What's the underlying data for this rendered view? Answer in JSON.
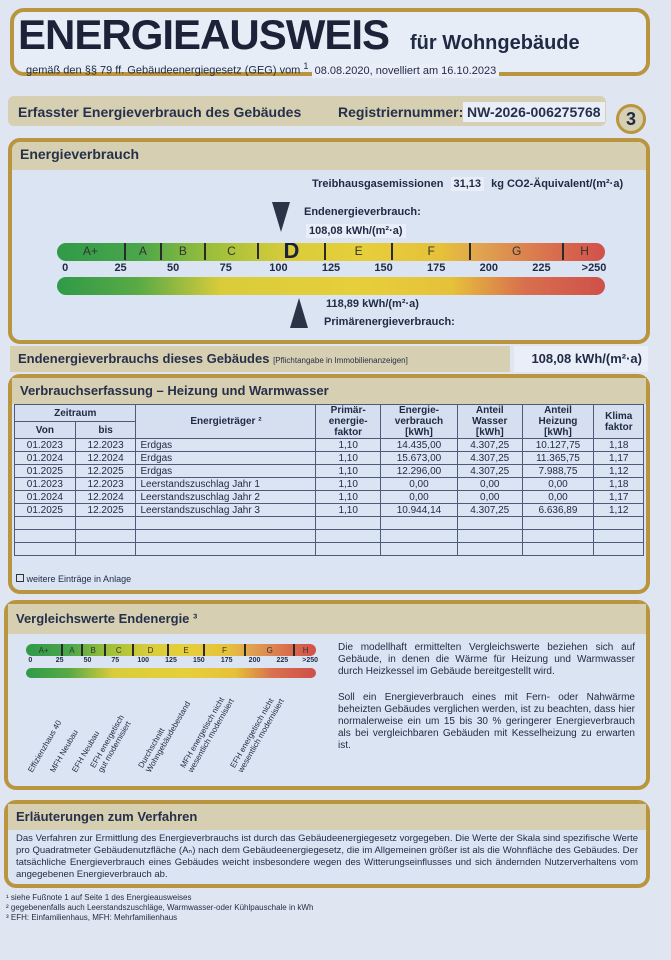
{
  "header": {
    "title": "ENERGIEAUSWEIS",
    "subtitle": "für Wohngebäude",
    "legal_ref": "gemäß den §§ 79 ff. Gebäudeenergiegesetz (GEG) vom",
    "legal_footnote": "1",
    "legal_dates": "08.08.2020, novelliert am 16.10.2023"
  },
  "registration": {
    "label": "Erfasster Energieverbrauch des Gebäudes",
    "number_label": "Registriernummer:",
    "number": "NW-2026-006275768",
    "page": "3"
  },
  "energy": {
    "heading": "Energieverbrauch",
    "ghg_label": "Treibhausgasemissionen",
    "ghg_value": "31,13",
    "ghg_unit": "kg CO2-Äquivalent/(m²·a)",
    "end_label": "Endenergieverbrauch:",
    "end_value": "108,08 kWh/(m²·a)",
    "primary_value": "118,89 kWh/(m²·a)",
    "primary_label": "Primärenergieverbrauch:",
    "current_class": "D",
    "end_numeric": 108.08,
    "primary_numeric": 118.89,
    "classes": [
      "A+",
      "A",
      "B",
      "C",
      "D",
      "E",
      "F",
      "G",
      "H"
    ],
    "ticks": [
      "0",
      "25",
      "50",
      "75",
      "100",
      "125",
      "150",
      "175",
      "200",
      "225",
      ">250"
    ]
  },
  "building_value": {
    "label": "Endenergieverbrauchs dieses Gebäudes",
    "note": "[Pflichtangabe in Immobilienanzeigen]",
    "value": "108,08 kWh/(m²·a)"
  },
  "consumption": {
    "heading": "Verbrauchserfassung – Heizung und Warmwasser",
    "headers": {
      "period": "Zeitraum",
      "from": "Von",
      "to": "bis",
      "carrier": "Energieträger ²",
      "pef": "Primär-\nenergie-\nfaktor",
      "consumption": "Energie-\nverbrauch\n[kWh]",
      "water": "Anteil\nWasser\n[kWh]",
      "heating": "Anteil\nHeizung\n[kWh]",
      "climate": "Klima\nfaktor"
    },
    "rows": [
      [
        "01.2023",
        "12.2023",
        "Erdgas",
        "1,10",
        "14.435,00",
        "4.307,25",
        "10.127,75",
        "1,18"
      ],
      [
        "01.2024",
        "12.2024",
        "Erdgas",
        "1,10",
        "15.673,00",
        "4.307,25",
        "11.365,75",
        "1,17"
      ],
      [
        "01.2025",
        "12.2025",
        "Erdgas",
        "1,10",
        "12.296,00",
        "4.307,25",
        "7.988,75",
        "1,12"
      ],
      [
        "01.2023",
        "12.2023",
        "Leerstandszuschlag Jahr 1",
        "1,10",
        "0,00",
        "0,00",
        "0,00",
        "1,18"
      ],
      [
        "01.2024",
        "12.2024",
        "Leerstandszuschlag Jahr 2",
        "1,10",
        "0,00",
        "0,00",
        "0,00",
        "1,17"
      ],
      [
        "01.2025",
        "12.2025",
        "Leerstandszuschlag Jahr 3",
        "1,10",
        "10.944,14",
        "4.307,25",
        "6.636,89",
        "1,12"
      ],
      [
        "",
        "",
        "",
        "",
        "",
        "",
        "",
        ""
      ],
      [
        "",
        "",
        "",
        "",
        "",
        "",
        "",
        ""
      ],
      [
        "",
        "",
        "",
        "",
        "",
        "",
        "",
        ""
      ]
    ],
    "more_entries": "weitere Einträge in Anlage",
    "more_entries_checked": false
  },
  "comparison": {
    "heading": "Vergleichswerte Endenergie ³",
    "classes": [
      "A+",
      "A",
      "B",
      "C",
      "D",
      "E",
      "F",
      "G",
      "H"
    ],
    "ticks": [
      "0",
      "25",
      "50",
      "75",
      "100",
      "125",
      "150",
      "175",
      "200",
      "225",
      ">250"
    ],
    "labels": [
      "Effizienzhaus 40",
      "MFH Neubau",
      "EFH Neubau",
      "EFH energetisch\ngut modernisiert",
      "Durchschnitt\nWohngebäudebestand",
      "MFH energetisch nicht\nwesentlich modernisiert",
      "EFH energetisch nicht\nwesentlich modernisiert"
    ],
    "text1": "Die modellhaft ermittelten Vergleichswerte beziehen sich auf Gebäude, in denen die Wärme für Heizung und Warmwasser durch Heizkessel im Gebäude bereitgestellt wird.",
    "text2": "Soll ein Energieverbrauch eines mit Fern- oder Nahwärme beheizten Gebäudes verglichen werden, ist zu beachten, dass hier normalerweise ein um 15 bis 30 % geringerer Energieverbrauch als bei vergleichbaren Gebäuden mit Kesselheizung zu erwarten ist."
  },
  "explanation": {
    "heading": "Erläuterungen zum Verfahren",
    "text": "Das Verfahren zur Ermittlung des Energieverbrauchs ist durch das Gebäudeenergiegesetz vorgegeben. Die Werte der Skala sind spezifische Werte pro Quadratmeter Gebäudenutzfläche (Aₙ) nach dem Gebäudeenergiegesetz, die im Allgemeinen größer ist als die Wohnfläche des Gebäudes. Der tatsächliche Energieverbrauch eines Gebäudes weicht insbesondere wegen des Witterungseinflusses und sich ändernden Nutzerverhaltens vom angegebenen Energieverbrauch ab."
  },
  "footnotes": [
    "¹ siehe Fußnote 1 auf Seite 1 des Energieausweises",
    "² gegebenenfalls auch Leerstandszuschläge, Warmwasser-oder Kühlpauschale in kWh",
    "³ EFH: Einfamilienhaus, MFH: Mehrfamilienhaus"
  ],
  "colors": {
    "frame": "#b8953e",
    "strip": "#d6cfb2",
    "panel": "#dbe4f2",
    "arrow": "#2b3346"
  }
}
